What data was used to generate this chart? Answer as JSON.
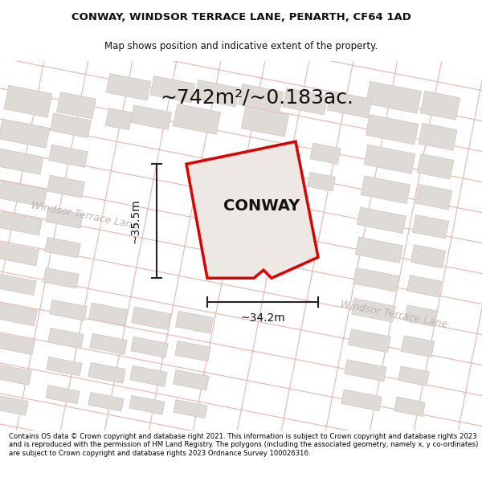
{
  "title_line1": "CONWAY, WINDSOR TERRACE LANE, PENARTH, CF64 1AD",
  "title_line2": "Map shows position and indicative extent of the property.",
  "area_label": "~742m²/~0.183ac.",
  "property_label": "CONWAY",
  "dim_width": "~34.2m",
  "dim_height": "~35.5m",
  "street_label": "Windsor Terrace Lane",
  "footer_text": "Contains OS data © Crown copyright and database right 2021. This information is subject to Crown copyright and database rights 2023 and is reproduced with the permission of HM Land Registry. The polygons (including the associated geometry, namely x, y co-ordinates) are subject to Crown copyright and database rights 2023 Ordnance Survey 100026316.",
  "map_bg": "#f5f2f0",
  "property_fill": "#ede8e4",
  "property_edge": "#dd0000",
  "building_fill": "#dedad6",
  "building_edge": "#ccc8c4",
  "road_fill": "#e8e4e0",
  "road_line_color": "#e8b0aa",
  "dim_color": "#222222",
  "label_color": "#111111",
  "street_text_color": "#b8b0ac",
  "title_fontsize": 9.5,
  "subtitle_fontsize": 8.5,
  "area_fontsize": 18,
  "label_fontsize": 14,
  "dim_fontsize": 10,
  "street_fontsize": 9,
  "footer_fontsize": 6.1
}
